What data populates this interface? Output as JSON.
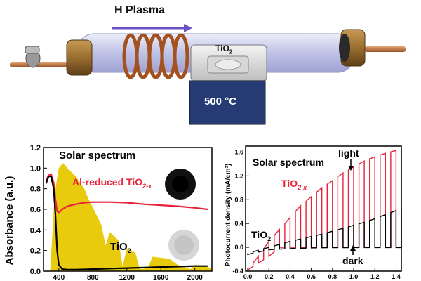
{
  "apparatus": {
    "plasma_label": "H Plasma",
    "sample_label": "TiO",
    "sample_sub": "2",
    "temperature_label": "500 °C"
  },
  "colors": {
    "tube": "#c9cbea",
    "furnace": "#243a72",
    "coil": "#b35c24",
    "cap": "#a67a36",
    "arrow": "#6a52c4",
    "red": "#e8223a",
    "black": "#000000",
    "solar": "#e8c800"
  },
  "chart_data": [
    {
      "type": "line",
      "ylabel": "Absorbance (a.u.)",
      "xlabel": "",
      "ylim": [
        0.0,
        1.2
      ],
      "xlim": [
        220,
        2200
      ],
      "yticks": [
        "0.0",
        "0.2",
        "0.4",
        "0.6",
        "0.8",
        "1.0",
        "1.2"
      ],
      "xticks": [
        "400",
        "800",
        "1200",
        "1600",
        "2000"
      ],
      "legend_title": "Solar spectrum",
      "series": [
        {
          "name": "Al-reduced TiO",
          "name_sub": "2-x",
          "color": "red",
          "x": [
            250,
            280,
            310,
            340,
            360,
            380,
            400,
            440,
            500,
            600,
            700,
            800,
            900,
            1000,
            1200,
            1400,
            1600,
            1800,
            2000,
            2150
          ],
          "y": [
            0.88,
            0.93,
            0.94,
            0.86,
            0.7,
            0.58,
            0.57,
            0.6,
            0.63,
            0.65,
            0.665,
            0.67,
            0.67,
            0.67,
            0.665,
            0.65,
            0.64,
            0.63,
            0.615,
            0.6
          ]
        },
        {
          "name": "TiO",
          "name_sub": "2",
          "color": "black",
          "x": [
            250,
            280,
            310,
            340,
            360,
            380,
            400,
            440,
            500,
            600,
            800,
            1000,
            1200,
            1400,
            1600,
            1800,
            2000,
            2150
          ],
          "y": [
            0.85,
            0.92,
            0.92,
            0.8,
            0.55,
            0.2,
            0.06,
            0.02,
            0.015,
            0.015,
            0.02,
            0.025,
            0.03,
            0.035,
            0.04,
            0.045,
            0.05,
            0.05
          ]
        }
      ],
      "solar_spectrum": {
        "x": [
          300,
          320,
          350,
          400,
          450,
          500,
          600,
          700,
          750,
          800,
          900,
          950,
          1000,
          1100,
          1150,
          1200,
          1300,
          1350,
          1450,
          1500,
          1600,
          1700,
          1800,
          1950,
          2000,
          2100,
          2200
        ],
        "y": [
          0.02,
          0.3,
          0.75,
          1.0,
          1.05,
          1.0,
          0.92,
          0.8,
          0.7,
          0.62,
          0.45,
          0.25,
          0.38,
          0.3,
          0.05,
          0.22,
          0.18,
          0.02,
          0.03,
          0.14,
          0.13,
          0.12,
          0.06,
          0.02,
          0.06,
          0.05,
          0.03
        ]
      }
    },
    {
      "type": "line",
      "ylabel": "Photocurrent density (mA/cm²)",
      "xlabel": "",
      "ylim": [
        -0.4,
        1.7
      ],
      "xlim": [
        -0.02,
        1.45
      ],
      "yticks": [
        "-0.4",
        "0.0",
        "0.4",
        "0.8",
        "1.2",
        "1.6"
      ],
      "yticks_minor": [
        "0.0",
        "0.4",
        "0.8",
        "1.2",
        "1.6"
      ],
      "xticks": [
        "0.0",
        "0.2",
        "0.4",
        "0.6",
        "0.8",
        "1.0",
        "1.2",
        "1.4"
      ],
      "legend_title": "Solar spectrum",
      "annotations": [
        "light",
        "dark"
      ],
      "series": [
        {
          "name": "TiO",
          "name_sub": "2-x",
          "color": "red",
          "dark_x": [
            0.0,
            0.2,
            0.3,
            0.5,
            0.8,
            1.0,
            1.2,
            1.45
          ],
          "dark_y": [
            -0.38,
            -0.15,
            0.0,
            0.0,
            0.0,
            0.0,
            0.0,
            0.0
          ],
          "light_x": [
            0.0,
            0.1,
            0.2,
            0.3,
            0.4,
            0.5,
            0.6,
            0.7,
            0.8,
            0.9,
            1.0,
            1.1,
            1.2,
            1.3,
            1.45
          ],
          "light_y": [
            -0.38,
            -0.15,
            0.1,
            0.3,
            0.5,
            0.7,
            0.85,
            1.0,
            1.12,
            1.25,
            1.35,
            1.45,
            1.52,
            1.58,
            1.65
          ]
        },
        {
          "name": "TiO",
          "name_sub": "2",
          "color": "black",
          "dark_x": [
            0.0,
            0.1,
            0.2,
            0.4,
            0.6,
            0.8,
            1.0,
            1.2,
            1.45
          ],
          "dark_y": [
            -0.12,
            -0.08,
            -0.04,
            -0.02,
            -0.01,
            -0.005,
            -0.004,
            -0.004,
            -0.004
          ],
          "light_x": [
            0.0,
            0.1,
            0.2,
            0.3,
            0.4,
            0.5,
            0.6,
            0.7,
            0.8,
            0.9,
            1.0,
            1.1,
            1.2,
            1.3,
            1.45
          ],
          "light_y": [
            -0.1,
            -0.05,
            0.0,
            0.05,
            0.1,
            0.14,
            0.18,
            0.22,
            0.27,
            0.32,
            0.37,
            0.42,
            0.48,
            0.55,
            0.65
          ]
        }
      ]
    }
  ]
}
